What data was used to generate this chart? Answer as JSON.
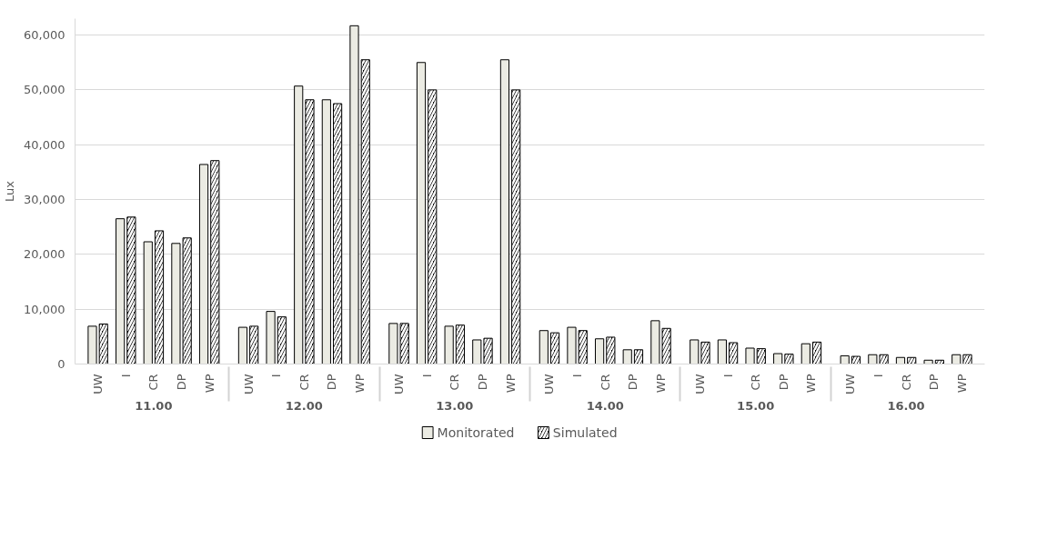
{
  "chart_data": {
    "type": "bar",
    "ylabel": "Lux",
    "categories": [
      "UW",
      "I",
      "CR",
      "DP",
      "WP",
      "UW",
      "I",
      "CR",
      "DP",
      "WP",
      "UW",
      "I",
      "CR",
      "DP",
      "WP",
      "UW",
      "I",
      "CR",
      "DP",
      "WP",
      "UW",
      "I",
      "CR",
      "DP",
      "WP",
      "UW",
      "I",
      "CR",
      "DP",
      "WP"
    ],
    "annotations": [
      "11.00",
      "12.00",
      "13.00",
      "14.00",
      "15.00",
      "16.00"
    ],
    "series": [
      {
        "name": "Monitorated",
        "color": "#ebebe3",
        "values": [
          6900,
          26500,
          22300,
          22000,
          36400,
          6700,
          9600,
          50700,
          48200,
          61700,
          7400,
          55000,
          6900,
          4400,
          55500,
          6100,
          6700,
          4600,
          2600,
          7900,
          4400,
          4400,
          2900,
          1900,
          3700,
          1500,
          1700,
          1200,
          700,
          1700
        ]
      },
      {
        "name": "Simulated",
        "color": "#000000",
        "values": [
          7300,
          26800,
          24300,
          23000,
          37100,
          6900,
          8600,
          48200,
          47500,
          55500,
          7400,
          50000,
          7100,
          4700,
          50000,
          5700,
          6100,
          4900,
          2600,
          6500,
          4000,
          3900,
          2800,
          1800,
          4000,
          1400,
          1700,
          1200,
          700,
          1700
        ]
      }
    ],
    "ylim": [
      0,
      63000
    ],
    "yticks": [
      {
        "value": 0,
        "label": "0"
      },
      {
        "value": 10000,
        "label": "10,000"
      },
      {
        "value": 20000,
        "label": "20,000"
      },
      {
        "value": 30000,
        "label": "30,000"
      },
      {
        "value": 40000,
        "label": "40,000"
      },
      {
        "value": 50000,
        "label": "50,000"
      },
      {
        "value": 60000,
        "label": "60,000"
      }
    ],
    "grid": "y",
    "legend": "bottom"
  }
}
